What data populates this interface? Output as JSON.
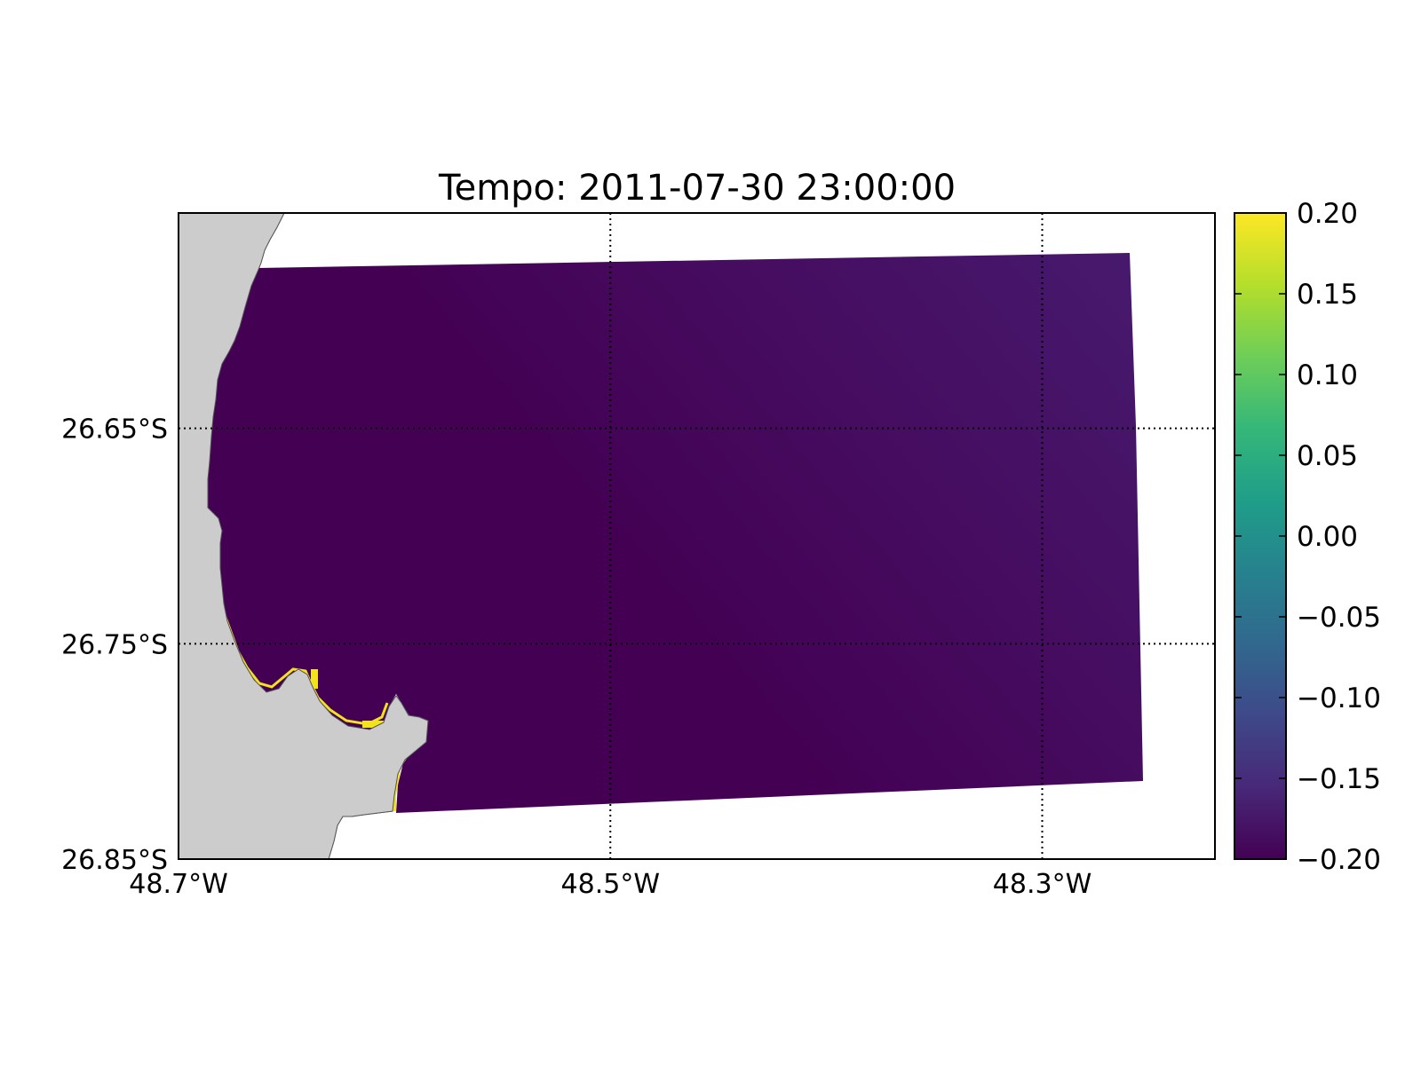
{
  "title": "Tempo: 2011-07-30 23:00:00",
  "map": {
    "lon_range": [
      -48.7,
      -48.22
    ],
    "lat_range": [
      -26.85,
      -26.55
    ],
    "land_color": "#cccccc",
    "background_color": "#ffffff",
    "grid_style": "dotted",
    "x_ticks": [
      {
        "value": -48.7,
        "label": "48.7°W"
      },
      {
        "value": -48.5,
        "label": "48.5°W"
      },
      {
        "value": -48.3,
        "label": "48.3°W"
      }
    ],
    "y_ticks": [
      {
        "value": -26.65,
        "label": "26.65°S"
      },
      {
        "value": -26.75,
        "label": "26.75°S"
      },
      {
        "value": -26.85,
        "label": "26.85°S"
      }
    ]
  },
  "field": {
    "colors": {
      "nearshore": "#440154",
      "offshore": "#471a6e",
      "coastal_edge": "#f2e21f"
    },
    "approx_value_range": [
      -0.2,
      -0.17
    ]
  },
  "colorbar": {
    "colormap": "viridis",
    "min": -0.2,
    "max": 0.2,
    "stops": [
      "#440154",
      "#482878",
      "#3e4989",
      "#31688e",
      "#26828e",
      "#1f9e89",
      "#35b779",
      "#6ece58",
      "#b5de2b",
      "#fde725"
    ],
    "ticks": [
      {
        "value": 0.2,
        "label": "0.20"
      },
      {
        "value": 0.15,
        "label": "0.15"
      },
      {
        "value": 0.1,
        "label": "0.10"
      },
      {
        "value": 0.05,
        "label": "0.05"
      },
      {
        "value": 0.0,
        "label": "0.00"
      },
      {
        "value": -0.05,
        "label": "−0.05"
      },
      {
        "value": -0.1,
        "label": "−0.10"
      },
      {
        "value": -0.15,
        "label": "−0.15"
      },
      {
        "value": -0.2,
        "label": "−0.20"
      }
    ]
  }
}
